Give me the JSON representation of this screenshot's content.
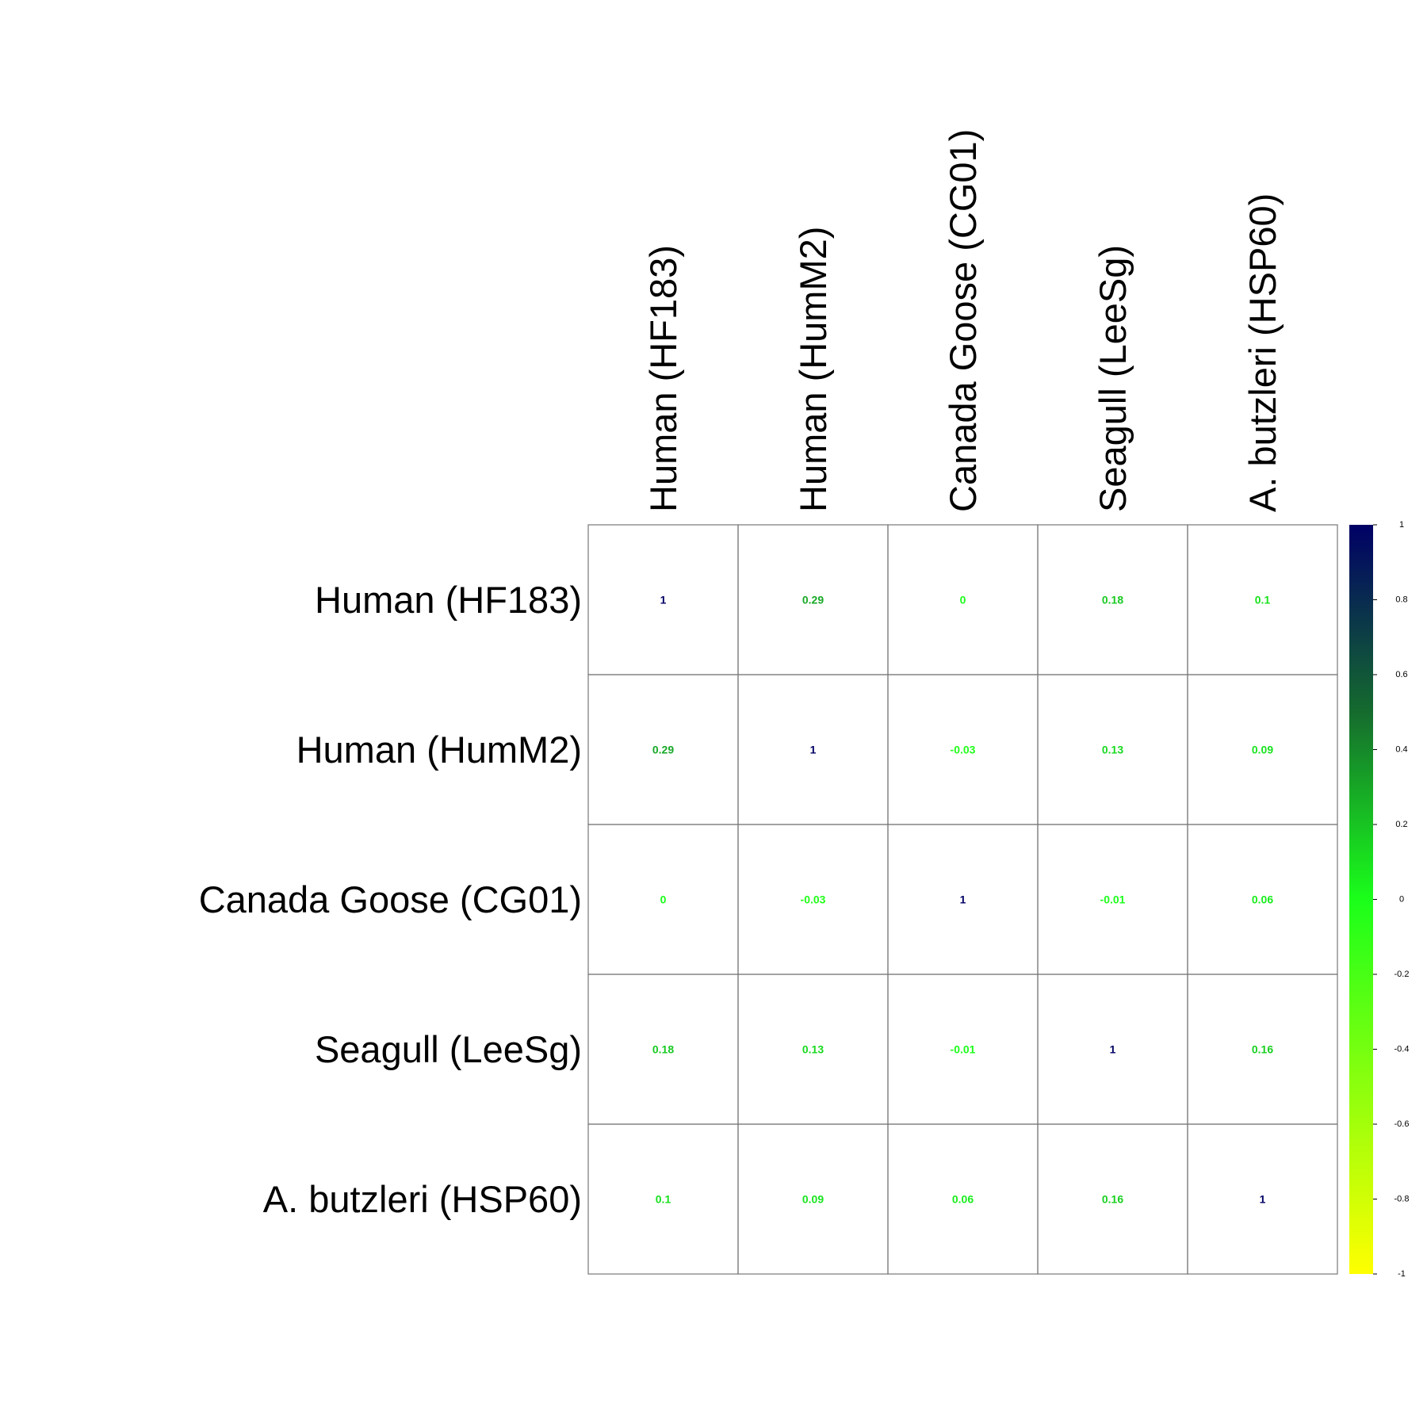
{
  "chart_data": {
    "type": "heatmap",
    "title": "",
    "row_labels": [
      "Human (HF183)",
      "Human (HumM2)",
      "Canada Goose (CG01)",
      "Seagull (LeeSg)",
      "A. butzleri (HSP60)"
    ],
    "col_labels": [
      "Human (HF183)",
      "Human (HumM2)",
      "Canada Goose (CG01)",
      "Seagull (LeeSg)",
      "A. butzleri (HSP60)"
    ],
    "values": [
      [
        1,
        0.29,
        0,
        0.18,
        0.1
      ],
      [
        0.29,
        1,
        -0.03,
        0.13,
        0.09
      ],
      [
        0,
        -0.03,
        1,
        -0.01,
        0.06
      ],
      [
        0.18,
        0.13,
        -0.01,
        1,
        0.16
      ],
      [
        0.1,
        0.09,
        0.06,
        0.16,
        1
      ]
    ],
    "value_labels": [
      [
        "1",
        "0.29",
        "0",
        "0.18",
        "0.1"
      ],
      [
        "0.29",
        "1",
        "-0.03",
        "0.13",
        "0.09"
      ],
      [
        "0",
        "-0.03",
        "1",
        "-0.01",
        "0.06"
      ],
      [
        "0.18",
        "0.13",
        "-0.01",
        "1",
        "0.16"
      ],
      [
        "0.1",
        "0.09",
        "0.06",
        "0.16",
        "1"
      ]
    ],
    "color_scale": {
      "range": [
        -1,
        1
      ],
      "stops": [
        {
          "value": -1,
          "color": "#ffff00"
        },
        {
          "value": 0,
          "color": "#1aff1a"
        },
        {
          "value": 0.5,
          "color": "#156b2e"
        },
        {
          "value": 1,
          "color": "#000066"
        }
      ],
      "tick_labels": [
        "1",
        "0.8",
        "0.6",
        "0.4",
        "0.2",
        "0",
        "-0.2",
        "-0.4",
        "-0.6",
        "-0.8",
        "-1"
      ],
      "tick_values": [
        1,
        0.8,
        0.6,
        0.4,
        0.2,
        0,
        -0.2,
        -0.4,
        -0.6,
        -0.8,
        -1
      ]
    },
    "legend_placement": "right",
    "grid": true
  }
}
